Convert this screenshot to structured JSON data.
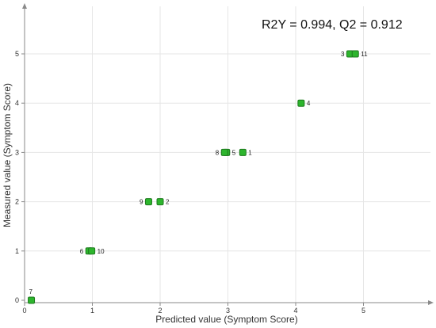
{
  "chart_data": {
    "type": "scatter",
    "title": "",
    "annotation": "R2Y = 0.994, Q2 = 0.912",
    "xlabel": "Predicted value (Symptom Score)",
    "ylabel": "Measured value  (Symptom Score)",
    "xlim": [
      0,
      5.98
    ],
    "ylim": [
      0,
      5.92
    ],
    "xticks": [
      0,
      1,
      2,
      3,
      4,
      5
    ],
    "yticks": [
      0,
      1,
      2,
      3,
      4,
      5
    ],
    "grid": true,
    "legend": "none",
    "marker_color": "#2db52d",
    "points": [
      {
        "label": "1",
        "x": 3.22,
        "y": 3
      },
      {
        "label": "2",
        "x": 2.0,
        "y": 2
      },
      {
        "label": "3",
        "x": 4.8,
        "y": 5
      },
      {
        "label": "4",
        "x": 4.08,
        "y": 4
      },
      {
        "label": "5",
        "x": 2.98,
        "y": 3
      },
      {
        "label": "6",
        "x": 0.95,
        "y": 1
      },
      {
        "label": "7",
        "x": 0.1,
        "y": 0
      },
      {
        "label": "8",
        "x": 2.95,
        "y": 3
      },
      {
        "label": "9",
        "x": 1.83,
        "y": 2
      },
      {
        "label": "10",
        "x": 0.99,
        "y": 1
      },
      {
        "label": "11",
        "x": 4.88,
        "y": 5
      }
    ]
  }
}
